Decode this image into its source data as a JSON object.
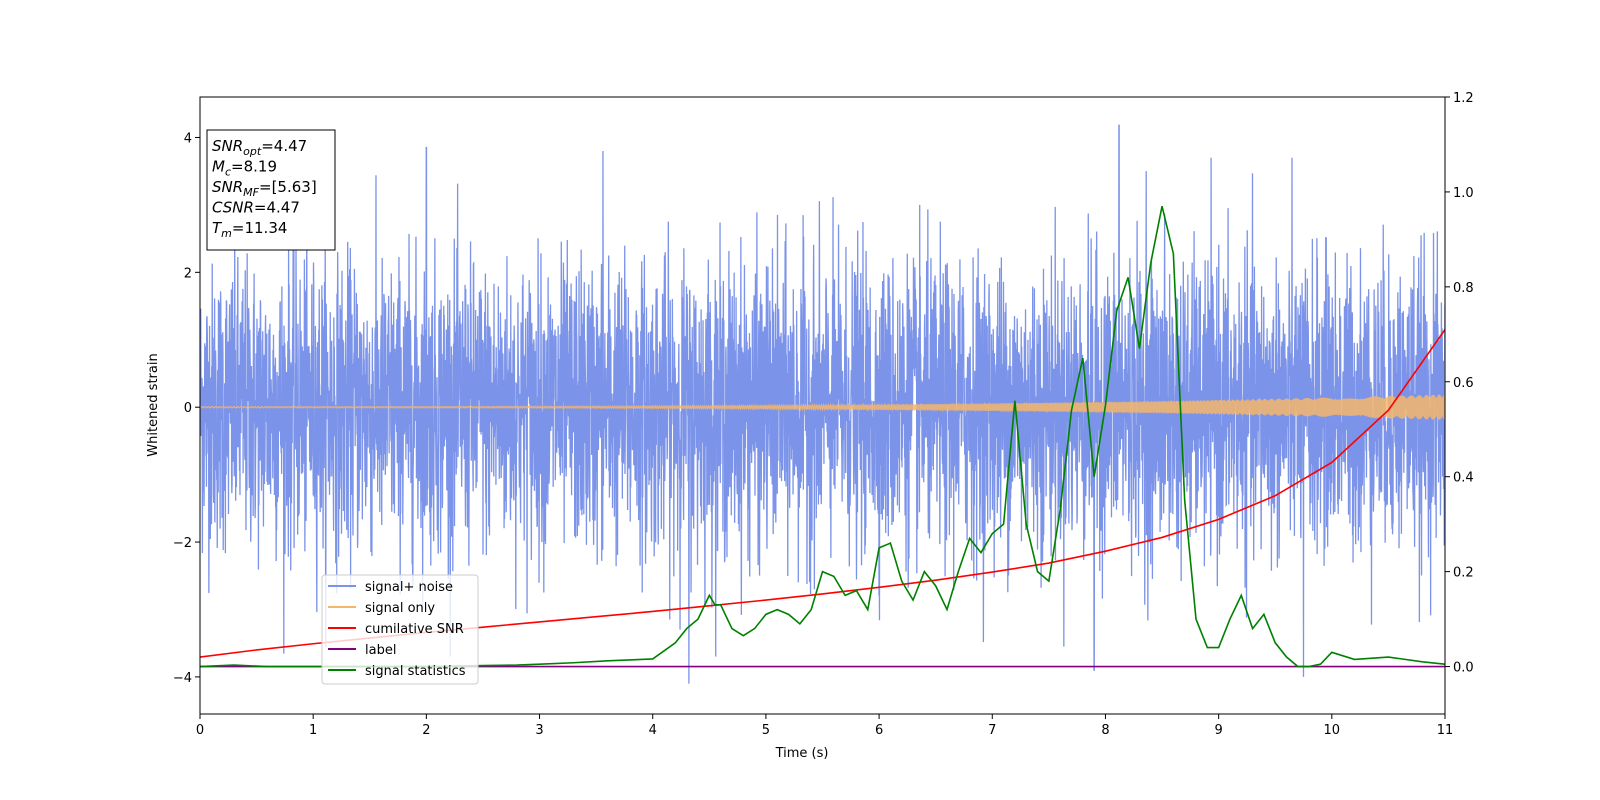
{
  "chart_data": {
    "type": "line",
    "xlabel": "Time (s)",
    "ylabel_left": "Whitened strain",
    "ylabel_right": "",
    "xlim": [
      0,
      11
    ],
    "ylim_left": [
      -4.55,
      4.6
    ],
    "ylim_right": [
      -0.1,
      1.2
    ],
    "x_ticks": [
      0,
      1,
      2,
      3,
      4,
      5,
      6,
      7,
      8,
      9,
      10,
      11
    ],
    "y_ticks_left": [
      -4,
      -2,
      0,
      2,
      4
    ],
    "y_ticks_right": [
      0.0,
      0.2,
      0.4,
      0.6,
      0.8,
      1.0,
      1.2
    ],
    "x_tick_labels": [
      "0",
      "1",
      "2",
      "3",
      "4",
      "5",
      "6",
      "7",
      "8",
      "9",
      "10",
      "11"
    ],
    "y_tick_labels_left": [
      "−4",
      "−2",
      "0",
      "2",
      "4"
    ],
    "y_tick_labels_right": [
      "0.0",
      "0.2",
      "0.4",
      "0.6",
      "0.8",
      "1.0",
      "1.2"
    ],
    "grid": false,
    "legend_placement": "lower-left",
    "info_box": [
      {
        "base": "SNR",
        "sub": "opt",
        "value": "=4.47"
      },
      {
        "base": "M",
        "sub": "c",
        "value": "=8.19"
      },
      {
        "base": "SNR",
        "sub": "MF",
        "value": "=[5.63]"
      },
      {
        "base": "CSNR",
        "sub": "",
        "value": "=4.47"
      },
      {
        "base": "T",
        "sub": "m",
        "value": "=11.34"
      }
    ],
    "series": [
      {
        "name": "signal+ noise",
        "axis": "left",
        "color": "#7b93e8",
        "kind": "noise",
        "envelope": 1.05,
        "notable_peaks": [
          [
            2.0,
            3.85
          ],
          [
            3.56,
            3.8
          ],
          [
            8.12,
            4.18
          ],
          [
            8.36,
            3.5
          ],
          [
            4.32,
            -4.1
          ],
          [
            7.9,
            -3.9
          ],
          [
            9.75,
            -4.0
          ]
        ]
      },
      {
        "name": "signal only",
        "axis": "left",
        "color": "#f4b66b",
        "kind": "chirp",
        "amplitude_start": 0.01,
        "amplitude_end": 0.19
      },
      {
        "name": "cumilative SNR",
        "axis": "right",
        "color": "#ff0000",
        "x": [
          0,
          0.5,
          1,
          1.5,
          2,
          2.5,
          3,
          3.5,
          4,
          4.5,
          5,
          5.5,
          6,
          6.5,
          7,
          7.5,
          8,
          8.5,
          9,
          9.5,
          10,
          10.5,
          11
        ],
        "values": [
          0.02,
          0.035,
          0.048,
          0.06,
          0.072,
          0.083,
          0.094,
          0.105,
          0.116,
          0.128,
          0.14,
          0.153,
          0.167,
          0.182,
          0.199,
          0.218,
          0.243,
          0.272,
          0.31,
          0.36,
          0.43,
          0.54,
          0.71
        ]
      },
      {
        "name": "label",
        "axis": "right",
        "color": "#800080",
        "x": [
          0,
          11
        ],
        "values": [
          0.0,
          0.0
        ]
      },
      {
        "name": "signal statistics",
        "axis": "right",
        "color": "#008000",
        "x": [
          0,
          0.3,
          0.6,
          1.0,
          1.5,
          2.0,
          2.5,
          2.8,
          3.0,
          3.3,
          3.6,
          4.0,
          4.2,
          4.3,
          4.4,
          4.5,
          4.55,
          4.6,
          4.7,
          4.8,
          4.9,
          5.0,
          5.1,
          5.2,
          5.3,
          5.4,
          5.5,
          5.6,
          5.7,
          5.8,
          5.9,
          6.0,
          6.1,
          6.2,
          6.3,
          6.4,
          6.5,
          6.6,
          6.7,
          6.8,
          6.9,
          7.0,
          7.1,
          7.2,
          7.3,
          7.4,
          7.5,
          7.6,
          7.7,
          7.8,
          7.9,
          8.0,
          8.1,
          8.2,
          8.3,
          8.4,
          8.5,
          8.6,
          8.7,
          8.8,
          8.9,
          9.0,
          9.1,
          9.2,
          9.3,
          9.4,
          9.5,
          9.6,
          9.7,
          9.8,
          9.9,
          10.0,
          10.2,
          10.5,
          10.8,
          11.0
        ],
        "values": [
          0.0,
          0.003,
          0.0,
          0.0,
          0.0,
          0.0,
          0.002,
          0.003,
          0.005,
          0.008,
          0.012,
          0.016,
          0.05,
          0.08,
          0.1,
          0.15,
          0.13,
          0.13,
          0.08,
          0.065,
          0.08,
          0.11,
          0.12,
          0.11,
          0.09,
          0.12,
          0.2,
          0.19,
          0.15,
          0.16,
          0.12,
          0.25,
          0.26,
          0.18,
          0.14,
          0.2,
          0.17,
          0.12,
          0.2,
          0.27,
          0.24,
          0.28,
          0.3,
          0.56,
          0.3,
          0.2,
          0.18,
          0.33,
          0.54,
          0.65,
          0.4,
          0.55,
          0.75,
          0.82,
          0.67,
          0.85,
          0.97,
          0.87,
          0.35,
          0.1,
          0.04,
          0.04,
          0.1,
          0.15,
          0.08,
          0.11,
          0.05,
          0.02,
          0.0,
          0.0,
          0.005,
          0.03,
          0.015,
          0.02,
          0.01,
          0.005
        ]
      }
    ]
  }
}
